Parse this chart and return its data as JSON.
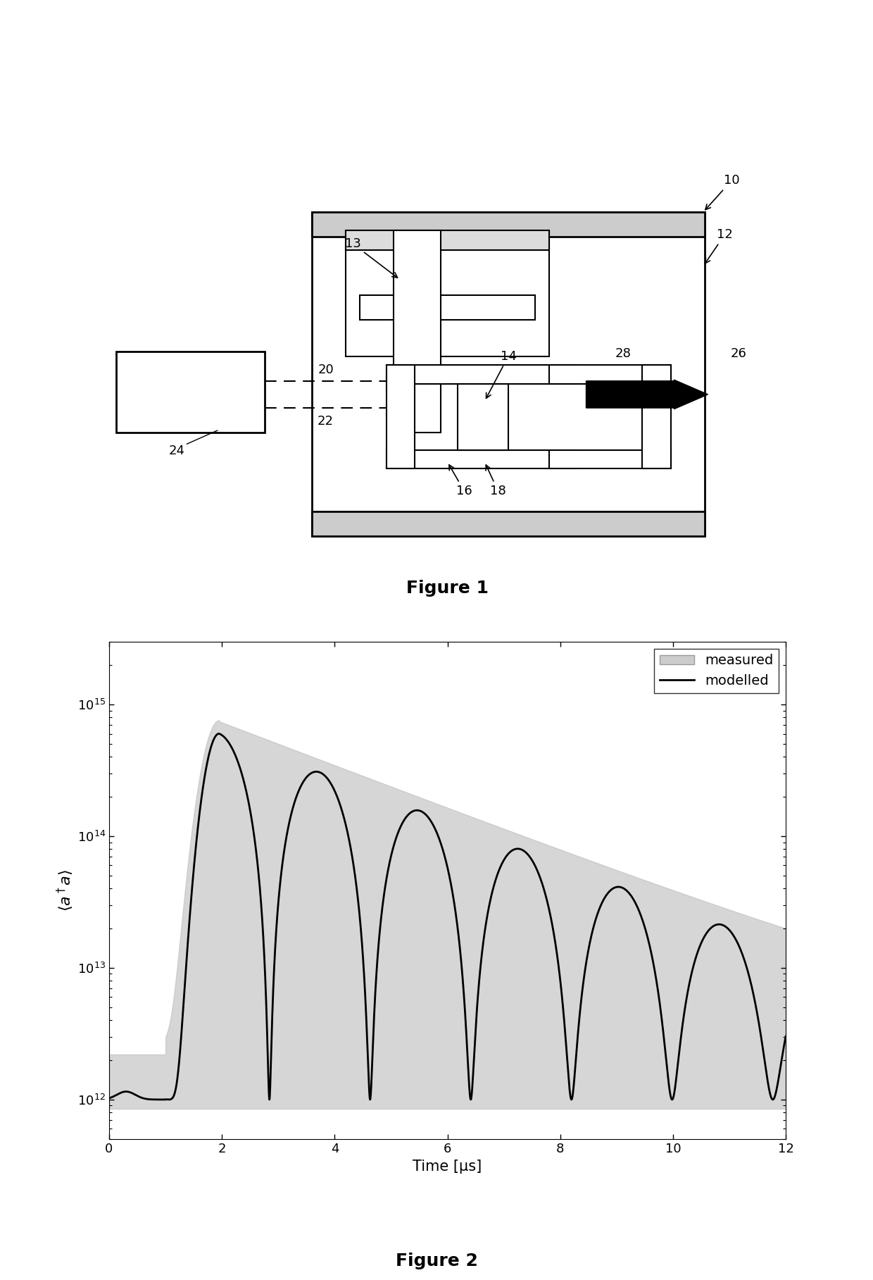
{
  "fig1_title": "Figure 1",
  "fig2_title": "Figure 2",
  "fig2_xlabel": "Time [μs]",
  "fig2_ylabel": "$\\langle a^\\dagger a \\rangle$",
  "fig2_xlim": [
    0,
    12
  ],
  "fig2_yticks": [
    1000000000000.0,
    10000000000000.0,
    100000000000000.0,
    1000000000000000.0
  ],
  "fig2_xticks": [
    0,
    2,
    4,
    6,
    8,
    10,
    12
  ],
  "background_color": "#ffffff",
  "plot_bg": "#ffffff",
  "line_color": "#000000",
  "fill_color": "#c0c0c0",
  "legend_measured": "measured",
  "legend_modelled": "modelled",
  "osc_freq": 0.56,
  "osc_decay": 0.38,
  "osc_amp": 600000000000000.0,
  "noise_floor": 1000000000000.0,
  "t_peak": 1.95
}
